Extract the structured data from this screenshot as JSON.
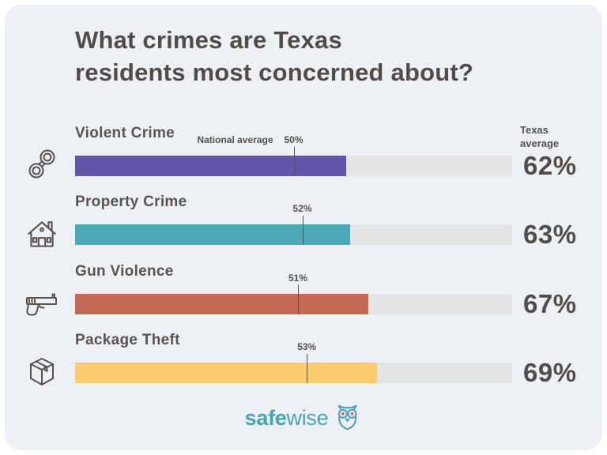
{
  "title": {
    "line1": "What crimes are Texas",
    "line2": "residents most concerned about?",
    "color": "#534b48"
  },
  "axis": {
    "national_average_prefix": "National average",
    "texas_average_line1": "Texas",
    "texas_average_line2": "average"
  },
  "chart_data": {
    "type": "bar",
    "orientation": "horizontal",
    "title": "What crimes are Texas residents most concerned about?",
    "categories": [
      "Violent Crime",
      "Property Crime",
      "Gun Violence",
      "Package Theft"
    ],
    "series": [
      {
        "name": "Texas average",
        "values": [
          62,
          63,
          67,
          69
        ],
        "unit": "%"
      },
      {
        "name": "National average",
        "values": [
          50,
          52,
          51,
          53
        ],
        "unit": "%",
        "style": "tick-marker"
      }
    ],
    "xlim": [
      0,
      100
    ],
    "grid": false,
    "legend_position": "inline-annotations",
    "bar_colors": [
      "#6355a9",
      "#4caab8",
      "#c56a55",
      "#fbcb6d"
    ],
    "track_color": "#e4e4e4"
  },
  "rows": [
    {
      "label": "Violent Crime",
      "icon": "handcuffs-icon",
      "texas_value": 62,
      "texas_display": "62%",
      "national_value": 50,
      "national_display": "50%",
      "bar_color": "#6355a9"
    },
    {
      "label": "Property Crime",
      "icon": "house-icon",
      "texas_value": 63,
      "texas_display": "63%",
      "national_value": 52,
      "national_display": "52%",
      "bar_color": "#4caab8"
    },
    {
      "label": "Gun Violence",
      "icon": "pistol-icon",
      "texas_value": 67,
      "texas_display": "67%",
      "national_value": 51,
      "national_display": "51%",
      "bar_color": "#c56a55"
    },
    {
      "label": "Package Theft",
      "icon": "package-icon",
      "texas_value": 69,
      "texas_display": "69%",
      "national_value": 53,
      "national_display": "53%",
      "bar_color": "#fbcb6d"
    }
  ],
  "footer": {
    "brand_bold": "safe",
    "brand_light": "wise",
    "brand_color": "#4aa3b5",
    "logo_icon": "owl-icon"
  },
  "colors": {
    "card_background": "#edf1f5",
    "page_background": "#ffffff",
    "text_dark": "#544c49",
    "icon_stroke": "#5a524e"
  }
}
